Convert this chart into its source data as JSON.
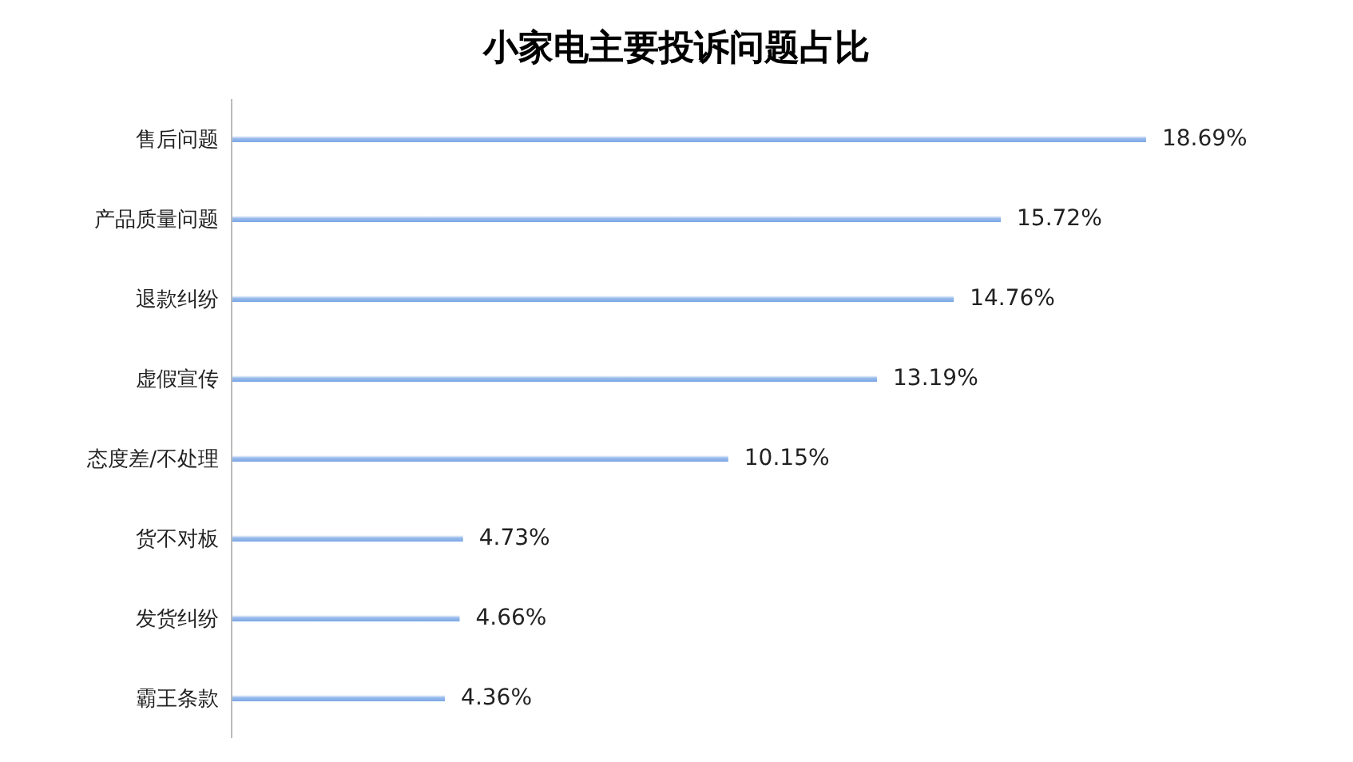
{
  "chart_data": {
    "type": "bar",
    "orientation": "horizontal",
    "title": "小家电主要投诉问题占比",
    "categories": [
      "售后问题",
      "产品质量问题",
      "退款纠纷",
      "虚假宣传",
      "态度差/不处理",
      "货不对板",
      "发货纠纷",
      "霸王条款"
    ],
    "values": [
      18.69,
      15.72,
      14.76,
      13.19,
      10.15,
      4.73,
      4.66,
      4.36
    ],
    "value_labels": [
      "18.69%",
      "15.72%",
      "14.76%",
      "13.19%",
      "10.15%",
      "4.73%",
      "4.66%",
      "4.36%"
    ],
    "color": "#7aa6e6",
    "grid": false,
    "legend": false
  }
}
